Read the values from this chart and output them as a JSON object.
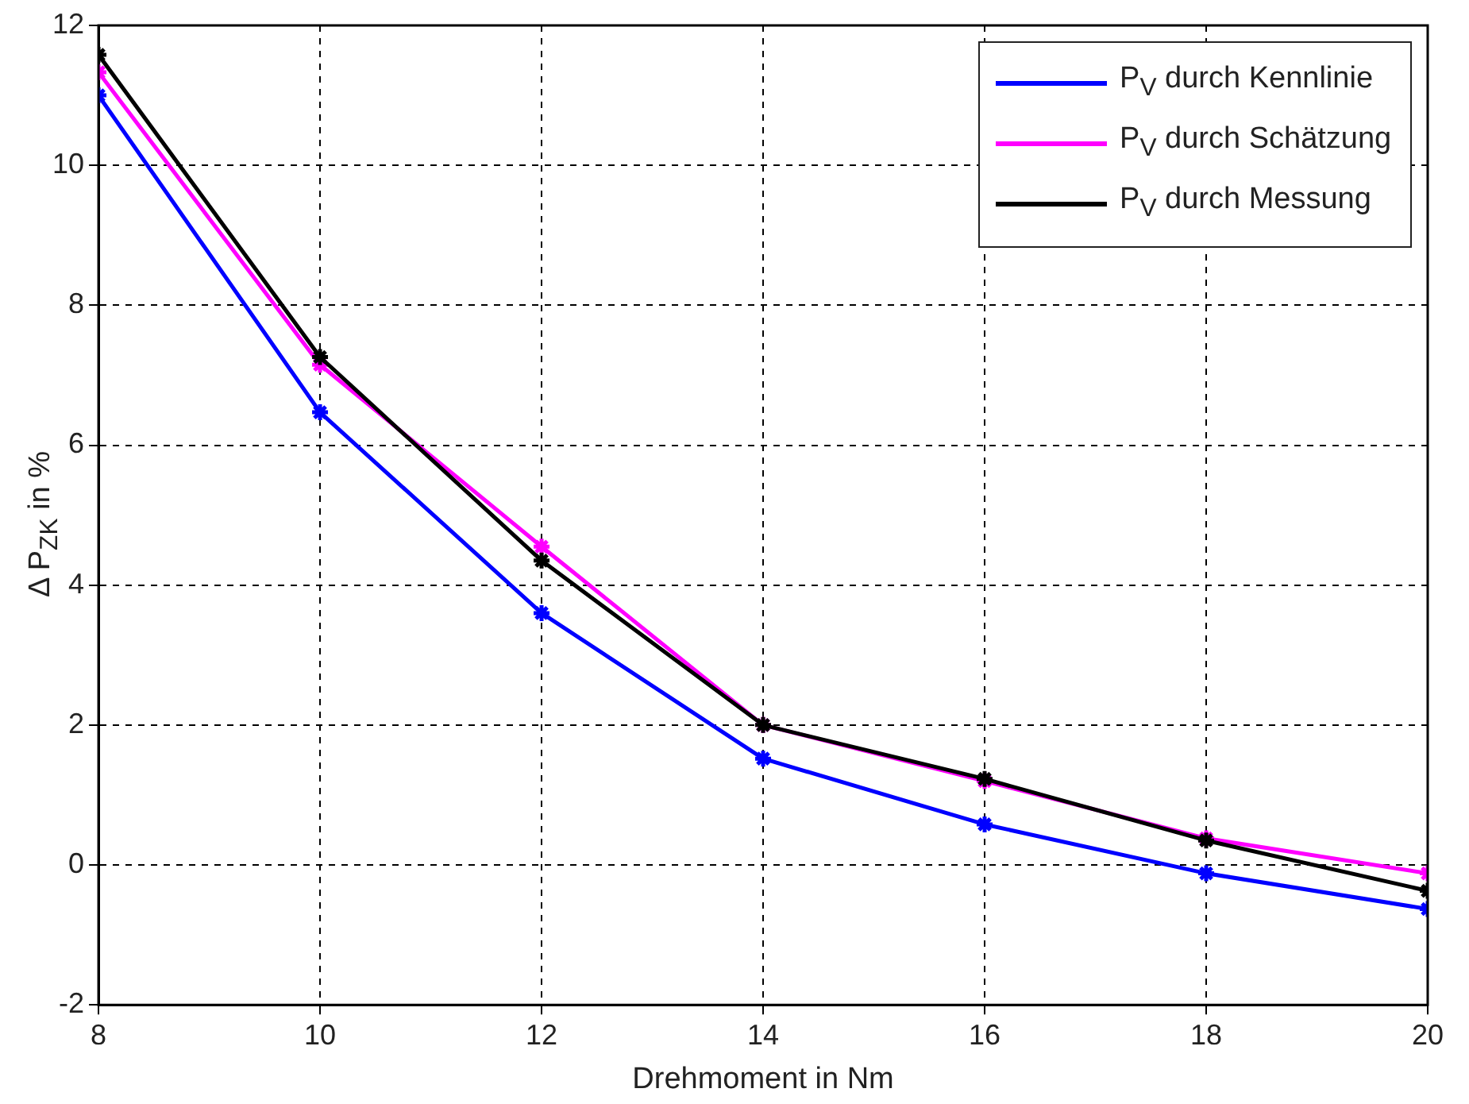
{
  "chart_data": {
    "type": "line",
    "xlabel": "Drehmoment in Nm",
    "ylabel": "Δ P$_{ZK}$ in %",
    "x": [
      8,
      10,
      12,
      14,
      16,
      18,
      20
    ],
    "series": [
      {
        "name": "P$_{V}$ durch Kennlinie",
        "color": "#0000ff",
        "values": [
          11.0,
          6.47,
          3.6,
          1.52,
          0.58,
          -0.12,
          -0.63
        ]
      },
      {
        "name": "P$_{V}$ durch Schätzung",
        "color": "#ff00ff",
        "values": [
          11.33,
          7.15,
          4.55,
          2.0,
          1.2,
          0.38,
          -0.12
        ]
      },
      {
        "name": "P$_{V}$ durch Messung",
        "color": "#000000",
        "values": [
          11.58,
          7.26,
          4.35,
          2.0,
          1.23,
          0.35,
          -0.37
        ]
      }
    ],
    "xlim": [
      8,
      20
    ],
    "xticks": [
      8,
      10,
      12,
      14,
      16,
      18,
      20
    ],
    "ylim": [
      -2,
      12
    ],
    "yticks": [
      -2,
      0,
      2,
      4,
      6,
      8,
      10,
      12
    ],
    "grid": true,
    "legend": "top right",
    "marker": "cross",
    "line_style": "solid"
  }
}
